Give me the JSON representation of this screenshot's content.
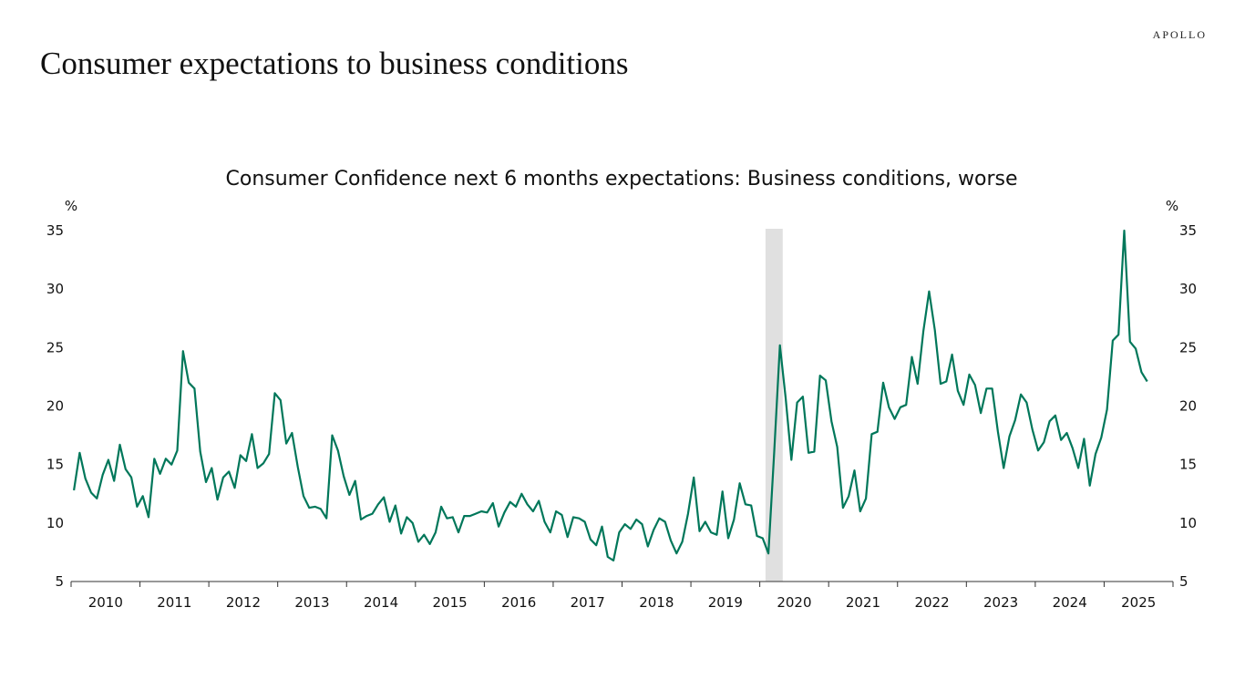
{
  "header": {
    "title": "Consumer expectations to business conditions",
    "brand": "APOLLO"
  },
  "chart_data": {
    "type": "line",
    "title": "Consumer Confidence next 6 months expectations: Business conditions, worse",
    "ylabel_left": "%",
    "ylabel_right": "%",
    "ylim": [
      5,
      35
    ],
    "yticks": [
      5,
      10,
      15,
      20,
      25,
      30,
      35
    ],
    "xticks": [
      "2010",
      "2011",
      "2012",
      "2013",
      "2014",
      "2015",
      "2016",
      "2017",
      "2018",
      "2019",
      "2020",
      "2021",
      "2022",
      "2023",
      "2024",
      "2025"
    ],
    "frequency": "monthly",
    "grid": false,
    "line_color": "#00775A",
    "recession_shading": {
      "start": "2020-02",
      "end": "2020-04",
      "color": "#E0E0E0"
    },
    "series_by_year": {
      "2010": [
        12.8,
        16.0,
        13.8,
        12.6,
        12.1,
        14.1,
        15.4,
        13.6,
        16.7,
        14.6,
        13.9,
        11.4
      ],
      "2011": [
        12.3,
        10.5,
        15.5,
        14.2,
        15.5,
        15.0,
        16.2,
        24.7,
        22.0,
        21.5,
        16.1,
        13.5
      ],
      "2012": [
        14.7,
        12.0,
        13.9,
        14.4,
        13.0,
        15.8,
        15.3,
        17.6,
        14.7,
        15.1,
        15.9,
        21.1
      ],
      "2013": [
        20.5,
        16.8,
        17.7,
        14.8,
        12.3,
        11.3,
        11.4,
        11.2,
        10.4,
        17.5,
        16.2,
        14.0
      ],
      "2014": [
        12.4,
        13.6,
        10.3,
        10.6,
        10.8,
        11.6,
        12.2,
        10.1,
        11.5,
        9.1,
        10.5,
        10.0
      ],
      "2015": [
        8.4,
        9.0,
        8.2,
        9.2,
        11.4,
        10.4,
        10.5,
        9.2,
        10.6,
        10.6,
        10.8,
        11.0
      ],
      "2016": [
        10.9,
        11.7,
        9.7,
        10.9,
        11.8,
        11.4,
        12.5,
        11.6,
        11.0,
        11.9,
        10.1,
        9.2
      ],
      "2017": [
        11.0,
        10.7,
        8.8,
        10.5,
        10.4,
        10.1,
        8.6,
        8.1,
        9.7,
        7.1,
        6.8,
        9.2
      ],
      "2018": [
        9.9,
        9.5,
        10.3,
        9.9,
        8.0,
        9.4,
        10.4,
        10.1,
        8.5,
        7.4,
        8.4,
        10.8
      ],
      "2019": [
        13.9,
        9.3,
        10.1,
        9.2,
        9.0,
        12.7,
        8.7,
        10.3,
        13.4,
        11.6,
        11.5,
        8.9
      ],
      "2020": [
        8.7,
        7.4,
        16.0,
        25.2,
        20.7,
        15.4,
        20.3,
        20.8,
        16.0,
        16.1,
        22.6,
        22.2
      ],
      "2021": [
        18.7,
        16.5,
        11.3,
        12.3,
        14.5,
        11.0,
        12.1,
        17.6,
        17.8,
        22.0,
        19.9,
        18.9
      ],
      "2022": [
        19.9,
        20.1,
        24.2,
        21.9,
        26.4,
        29.8,
        26.5,
        21.9,
        22.1,
        24.4,
        21.3,
        20.1
      ],
      "2023": [
        22.7,
        21.8,
        19.4,
        21.5,
        21.5,
        17.8,
        14.7,
        17.4,
        18.8,
        21.0,
        20.3,
        18.0
      ],
      "2024": [
        16.2,
        16.9,
        18.7,
        19.2,
        17.1,
        17.7,
        16.4,
        14.7,
        17.2,
        13.2,
        15.9,
        17.3
      ],
      "2025": [
        19.7,
        25.6,
        26.1,
        35.0,
        25.5,
        24.9,
        22.9,
        22.1
      ]
    }
  }
}
